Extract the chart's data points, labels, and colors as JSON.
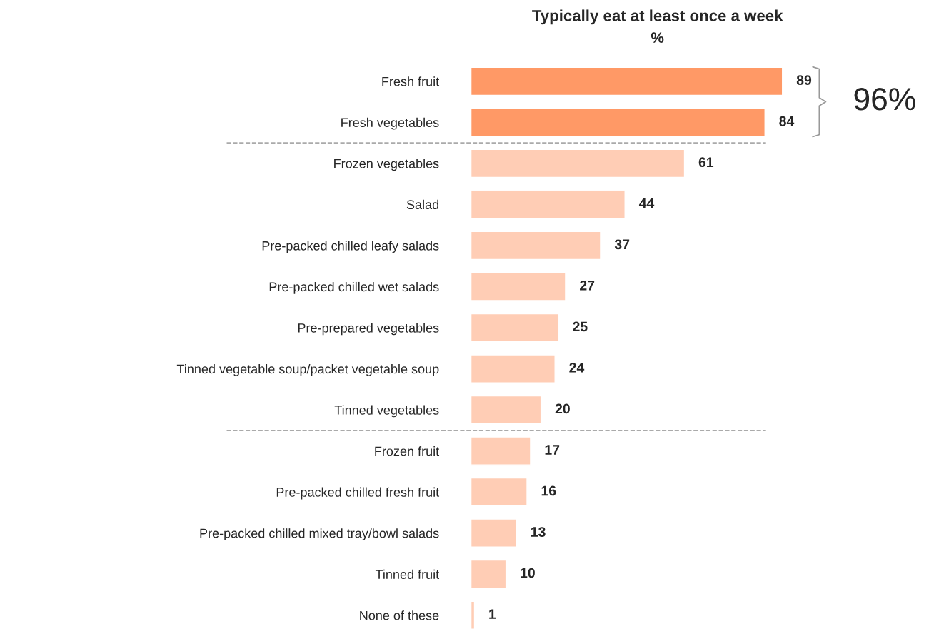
{
  "chart_data": {
    "type": "bar",
    "orientation": "horizontal",
    "title": "Typically eat at least once a week",
    "subtitle": "%",
    "categories": [
      "Fresh fruit",
      "Fresh vegetables",
      "Frozen vegetables",
      "Salad",
      "Pre-packed chilled leafy salads",
      "Pre-packed chilled wet salads",
      "Pre-prepared vegetables",
      "Tinned vegetable soup/packet vegetable soup",
      "Tinned vegetables",
      "Frozen fruit",
      "Pre-packed chilled fresh fruit",
      "Pre-packed chilled mixed tray/bowl salads",
      "Tinned fruit",
      "None of these"
    ],
    "values": [
      89,
      84,
      61,
      44,
      37,
      27,
      25,
      24,
      20,
      17,
      16,
      13,
      10,
      1
    ],
    "colors": [
      "#ff9966",
      "#ff9966",
      "#ffcdb5",
      "#ffcdb5",
      "#ffcdb5",
      "#ffcdb5",
      "#ffcdb5",
      "#ffcdb5",
      "#ffcdb5",
      "#ffcdb5",
      "#ffcdb5",
      "#ffcdb5",
      "#ffcdb5",
      "#ffcdb5"
    ],
    "tick_labels": "y",
    "grid": false,
    "data_labels": true,
    "ref_lines": [
      {
        "axis": "y",
        "value": "Fresh vegetables",
        "line_style": "dashed",
        "color": "#aaaaaa"
      },
      {
        "axis": "y",
        "value": "Tinned vegetables",
        "line_style": "dashed",
        "color": "#aaaaaa"
      }
    ],
    "annotations": [
      "96%"
    ]
  }
}
